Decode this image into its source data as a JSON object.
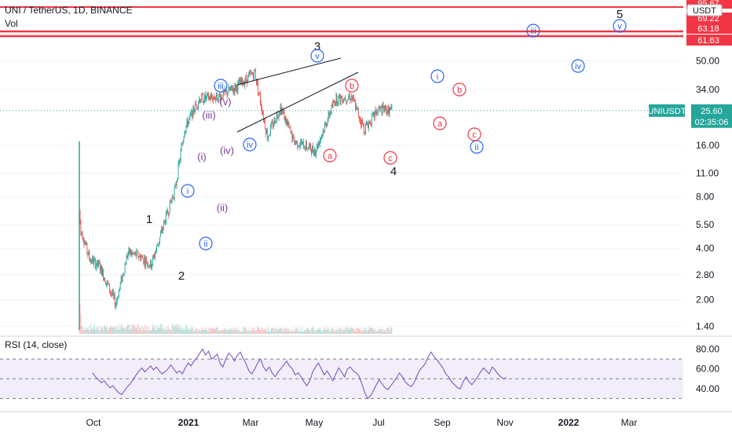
{
  "header": {
    "symbol_line": "UNI / TetherUS, 1D, BINANCE",
    "volume_label": "Vol"
  },
  "rsi": {
    "label": "RSI (14, close)",
    "ticks": [
      "80.00",
      "60.00",
      "40.00"
    ],
    "levels": {
      "upper": 70,
      "mid": 50,
      "lower": 30
    },
    "range": [
      20,
      90
    ],
    "values": [
      56,
      52,
      49,
      46,
      48,
      44,
      41,
      43,
      39,
      36,
      34,
      38,
      42,
      45,
      49,
      54,
      58,
      61,
      57,
      60,
      63,
      59,
      62,
      58,
      55,
      57,
      60,
      64,
      60,
      56,
      58,
      55,
      61,
      66,
      63,
      68,
      71,
      76,
      80,
      74,
      78,
      70,
      72,
      75,
      66,
      62,
      70,
      76,
      73,
      68,
      74,
      77,
      71,
      65,
      58,
      55,
      60,
      66,
      70,
      62,
      58,
      62,
      56,
      52,
      57,
      60,
      64,
      68,
      63,
      60,
      54,
      56,
      52,
      47,
      43,
      48,
      57,
      62,
      66,
      60,
      54,
      58,
      53,
      48,
      55,
      61,
      57,
      52,
      60,
      62,
      58,
      56,
      53,
      45,
      36,
      30,
      33,
      38,
      44,
      49,
      45,
      41,
      39,
      43,
      47,
      51,
      56,
      52,
      47,
      44,
      42,
      46,
      53,
      59,
      62,
      66,
      73,
      77,
      72,
      69,
      65,
      61,
      55,
      52,
      47,
      44,
      41,
      40,
      47,
      52,
      47,
      44,
      48,
      52,
      57,
      61,
      58,
      55,
      62,
      59,
      55,
      52,
      50,
      51
    ]
  },
  "price_axis": {
    "ticks": [
      "50.00",
      "34.00",
      "16.00",
      "11.00",
      "8.00",
      "5.50",
      "4.00",
      "2.80",
      "2.00",
      "1.40"
    ],
    "current_symbol": "UNIUSDT",
    "current_price": "25.60",
    "countdown": "02:35:06",
    "quote_badge": "USDT"
  },
  "levels": [
    {
      "value": "95.67",
      "color": "#f23645"
    },
    {
      "value": "69.22",
      "color": "#f23645"
    },
    {
      "value": "63.18",
      "color": "#f23645"
    },
    {
      "value": "61.63",
      "color": "#f23645"
    }
  ],
  "time_axis": {
    "ticks": [
      "Oct",
      "2021",
      "Mar",
      "May",
      "Jul",
      "Sep",
      "Nov",
      "2022",
      "Mar"
    ]
  },
  "colors": {
    "up": "#26a69a",
    "down": "#ef5350",
    "rsi_line": "#7e57c2",
    "blue_label": "#2962ff",
    "purple_label": "#7e3d9c",
    "red_label": "#f23645",
    "price_badge": "#26a69a"
  },
  "annotations": {
    "primary": [
      "1",
      "2",
      "3",
      "4",
      "5"
    ],
    "blue_circled": [
      "i",
      "ii",
      "iii",
      "iv",
      "v",
      "i",
      "ii",
      "iii",
      "iv",
      "v"
    ],
    "purple": [
      "(i)",
      "(ii)",
      "(iii)",
      "(iv)",
      "(v)"
    ],
    "red_circled": [
      "a",
      "b",
      "c",
      "a",
      "b",
      "c"
    ]
  },
  "chart_data": {
    "type": "candlestick",
    "title": "UNI / TetherUS, 1D, BINANCE",
    "scale": "log",
    "x_range": [
      "2020-09",
      "2022-04"
    ],
    "y_range": [
      1.2,
      100
    ],
    "approx_close_path": [
      {
        "x": "2020-09-17",
        "close": 7.5
      },
      {
        "x": "2020-09-20",
        "close": 5.2
      },
      {
        "x": "2020-10-01",
        "close": 3.5
      },
      {
        "x": "2020-10-15",
        "close": 3.1
      },
      {
        "x": "2020-11-04",
        "close": 1.9
      },
      {
        "x": "2020-11-20",
        "close": 3.8
      },
      {
        "x": "2020-12-05",
        "close": 3.6
      },
      {
        "x": "2020-12-20",
        "close": 3.2
      },
      {
        "x": "2021-01-05",
        "close": 5.5
      },
      {
        "x": "2021-01-20",
        "close": 9.0
      },
      {
        "x": "2021-02-01",
        "close": 20
      },
      {
        "x": "2021-02-20",
        "close": 30
      },
      {
        "x": "2021-03-20",
        "close": 31
      },
      {
        "x": "2021-04-15",
        "close": 37
      },
      {
        "x": "2021-05-03",
        "close": 43
      },
      {
        "x": "2021-05-19",
        "close": 18
      },
      {
        "x": "2021-06-05",
        "close": 27
      },
      {
        "x": "2021-06-22",
        "close": 17
      },
      {
        "x": "2021-07-20",
        "close": 15
      },
      {
        "x": "2021-08-15",
        "close": 30
      },
      {
        "x": "2021-09-05",
        "close": 31
      },
      {
        "x": "2021-09-21",
        "close": 20
      },
      {
        "x": "2021-10-10",
        "close": 26
      },
      {
        "x": "2021-10-28",
        "close": 25.6
      }
    ],
    "horizontal_levels": [
      95.67,
      69.22,
      63.18,
      61.63
    ],
    "last_price": 25.6
  }
}
